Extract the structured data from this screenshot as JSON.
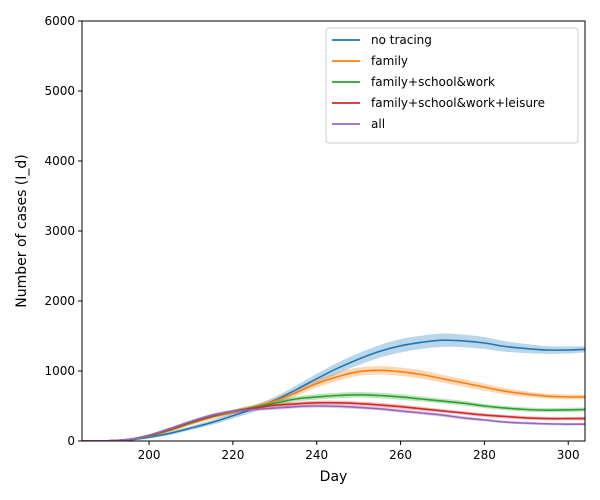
{
  "chart_data": {
    "type": "line",
    "title": "",
    "xlabel": "Day",
    "ylabel": "Number of cases (I_d)",
    "xlim": [
      184,
      304
    ],
    "ylim": [
      0,
      6000
    ],
    "xticks": [
      200,
      220,
      240,
      260,
      280,
      300
    ],
    "yticks": [
      0,
      1000,
      2000,
      3000,
      4000,
      5000,
      6000
    ],
    "grid": false,
    "legend_position": "top-right",
    "x": [
      184,
      190,
      195,
      200,
      205,
      210,
      215,
      220,
      225,
      230,
      235,
      240,
      245,
      250,
      255,
      260,
      265,
      270,
      275,
      280,
      285,
      290,
      295,
      300,
      304
    ],
    "series": [
      {
        "name": "no tracing",
        "color": "#1f77b4",
        "values": [
          0,
          2,
          15,
          55,
          110,
          185,
          265,
          360,
          460,
          580,
          730,
          890,
          1040,
          1170,
          1280,
          1360,
          1410,
          1440,
          1430,
          1400,
          1350,
          1320,
          1300,
          1300,
          1310
        ],
        "band": [
          0,
          3,
          15,
          20,
          25,
          30,
          35,
          40,
          45,
          50,
          60,
          70,
          80,
          85,
          90,
          95,
          95,
          95,
          90,
          85,
          75,
          65,
          55,
          50,
          45
        ]
      },
      {
        "name": "family",
        "color": "#ff7f0e",
        "values": [
          0,
          3,
          20,
          70,
          150,
          250,
          340,
          410,
          480,
          570,
          690,
          820,
          920,
          990,
          1010,
          990,
          950,
          890,
          830,
          770,
          710,
          670,
          640,
          630,
          630
        ],
        "band": [
          0,
          3,
          12,
          15,
          20,
          25,
          30,
          35,
          40,
          45,
          50,
          55,
          60,
          60,
          60,
          60,
          60,
          55,
          55,
          50,
          45,
          40,
          35,
          35,
          35
        ]
      },
      {
        "name": "family+school&work",
        "color": "#2ca02c",
        "values": [
          0,
          3,
          20,
          75,
          160,
          260,
          350,
          420,
          480,
          540,
          600,
          630,
          650,
          660,
          650,
          630,
          600,
          570,
          540,
          500,
          470,
          450,
          440,
          445,
          450
        ],
        "band": [
          0,
          3,
          10,
          12,
          15,
          20,
          25,
          30,
          30,
          35,
          35,
          40,
          40,
          40,
          40,
          40,
          35,
          35,
          35,
          30,
          30,
          30,
          30,
          30,
          30
        ]
      },
      {
        "name": "family+school&work+leisure",
        "color": "#d62728",
        "values": [
          0,
          3,
          22,
          80,
          170,
          270,
          360,
          420,
          470,
          510,
          530,
          545,
          545,
          535,
          515,
          490,
          460,
          430,
          400,
          370,
          350,
          330,
          320,
          320,
          320
        ],
        "band": [
          0,
          3,
          10,
          12,
          15,
          20,
          25,
          25,
          30,
          30,
          30,
          30,
          30,
          30,
          30,
          30,
          30,
          25,
          25,
          25,
          25,
          25,
          25,
          25,
          25
        ]
      },
      {
        "name": "all",
        "color": "#9467bd",
        "values": [
          0,
          3,
          22,
          85,
          180,
          280,
          370,
          420,
          450,
          470,
          490,
          500,
          495,
          480,
          460,
          430,
          400,
          370,
          330,
          300,
          270,
          255,
          245,
          240,
          240
        ],
        "band": [
          0,
          3,
          10,
          12,
          15,
          20,
          20,
          25,
          25,
          25,
          25,
          25,
          25,
          25,
          25,
          25,
          25,
          25,
          25,
          20,
          20,
          20,
          20,
          20,
          20
        ]
      }
    ]
  }
}
